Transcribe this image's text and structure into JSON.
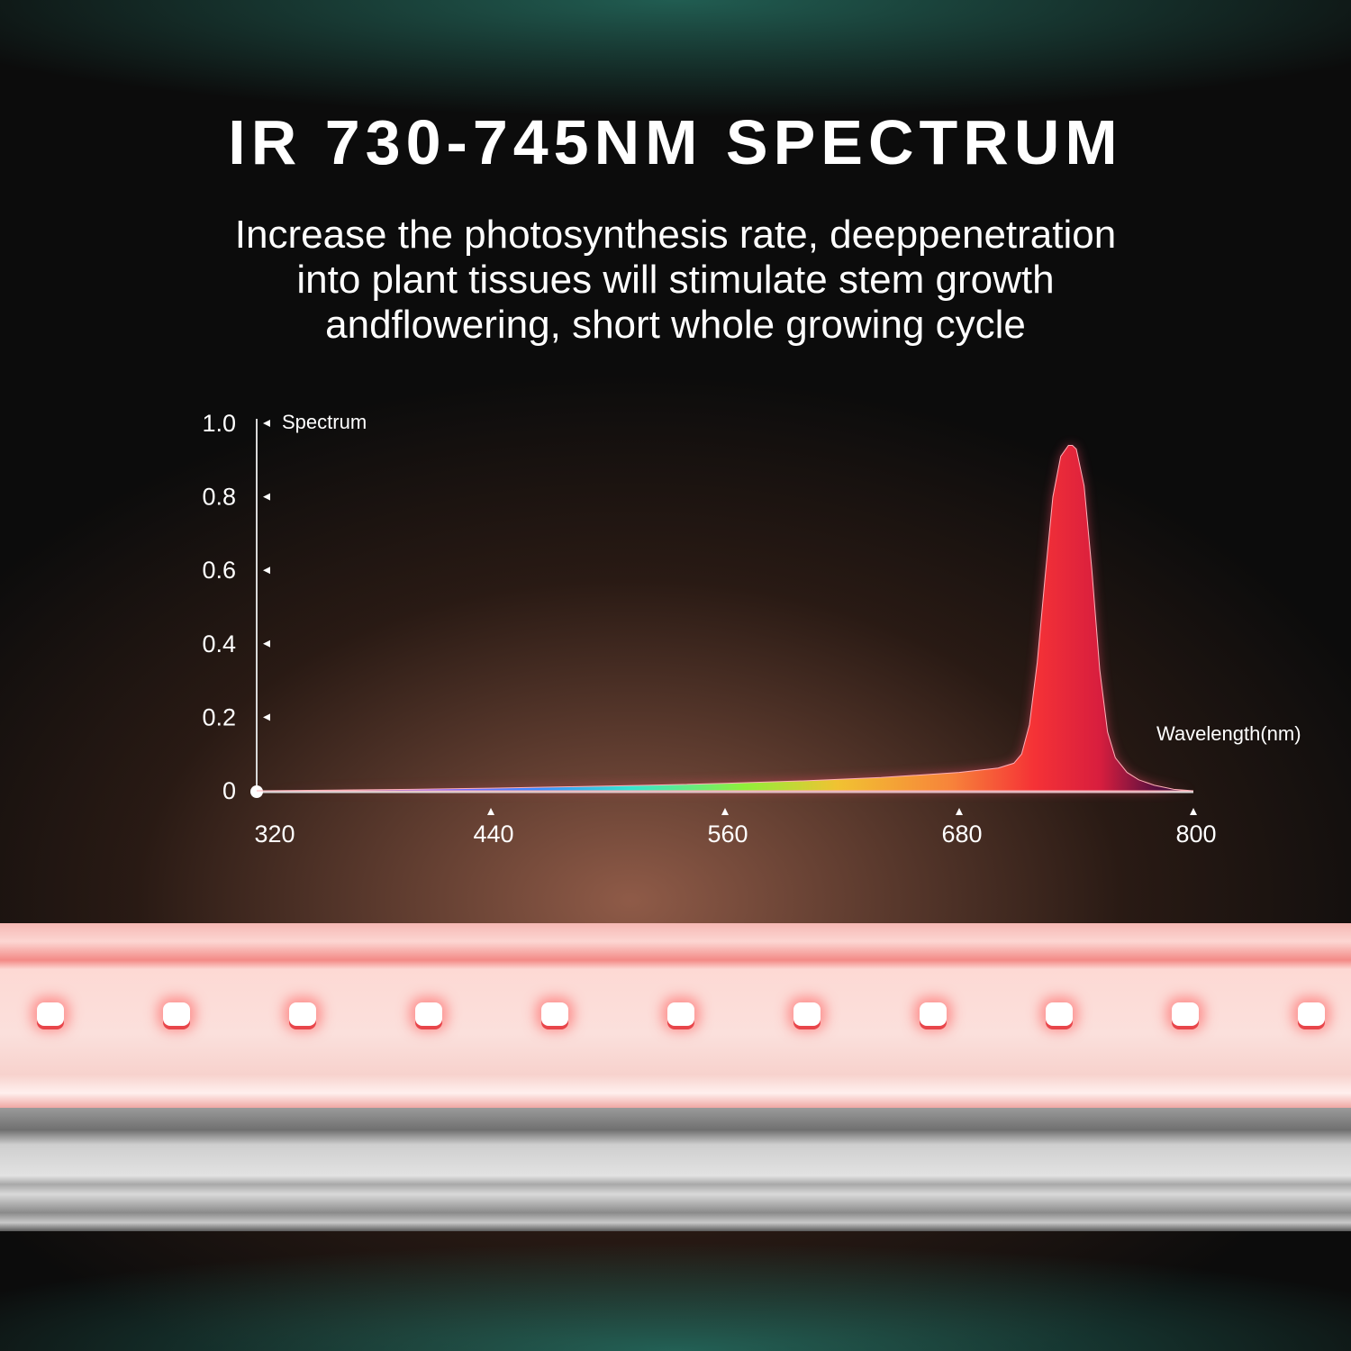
{
  "title": "IR 730-745NM SPECTRUM",
  "subtitle_lines": [
    "Increase the photosynthesis rate, deeppenetration",
    "into plant tissues will stimulate stem growth",
    "andflowering, short whole growing cycle"
  ],
  "chart_data": {
    "type": "area",
    "title": "",
    "xlabel": "Wavelength(nm)",
    "ylabel": "Spectrum",
    "xlim": [
      320,
      800
    ],
    "ylim": [
      0,
      1.0
    ],
    "x_ticks": [
      "320",
      "440",
      "560",
      "680",
      "800"
    ],
    "y_ticks": [
      "0",
      "0.2",
      "0.4",
      "0.6",
      "0.8",
      "1.0"
    ],
    "grid": false,
    "fill": "rainbow wavelength gradient",
    "series": [
      {
        "x": [
          320,
          360,
          400,
          440,
          480,
          520,
          560,
          600,
          640,
          680,
          700,
          708,
          712,
          716,
          720,
          724,
          728,
          732,
          736,
          738,
          740,
          744,
          748,
          752,
          756,
          760,
          766,
          772,
          780,
          790,
          800
        ],
        "y": [
          0,
          0.002,
          0.004,
          0.007,
          0.011,
          0.015,
          0.02,
          0.027,
          0.036,
          0.05,
          0.062,
          0.075,
          0.1,
          0.18,
          0.35,
          0.58,
          0.8,
          0.91,
          0.94,
          0.94,
          0.93,
          0.83,
          0.6,
          0.33,
          0.16,
          0.09,
          0.05,
          0.03,
          0.015,
          0.004,
          0
        ]
      }
    ]
  },
  "colors": {
    "peak": "#f3333c",
    "background": "#0c0c0c",
    "glow": "#6b4232",
    "led": "#f7c9c5"
  }
}
